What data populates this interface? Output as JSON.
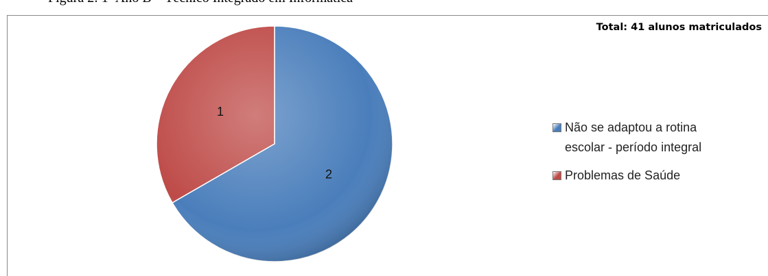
{
  "caption": "Figura 2: 1º Ano B – Técnico Integrado em Informática",
  "chart_data": {
    "type": "pie",
    "title": "Total: 41 alunos matriculados",
    "categories": [
      "Não se adaptou a rotina escolar - período integral",
      "Problemas de Saúde"
    ],
    "values": [
      2,
      1
    ],
    "colors": [
      "#4a7ebb",
      "#be4b48"
    ],
    "legend": "right"
  }
}
